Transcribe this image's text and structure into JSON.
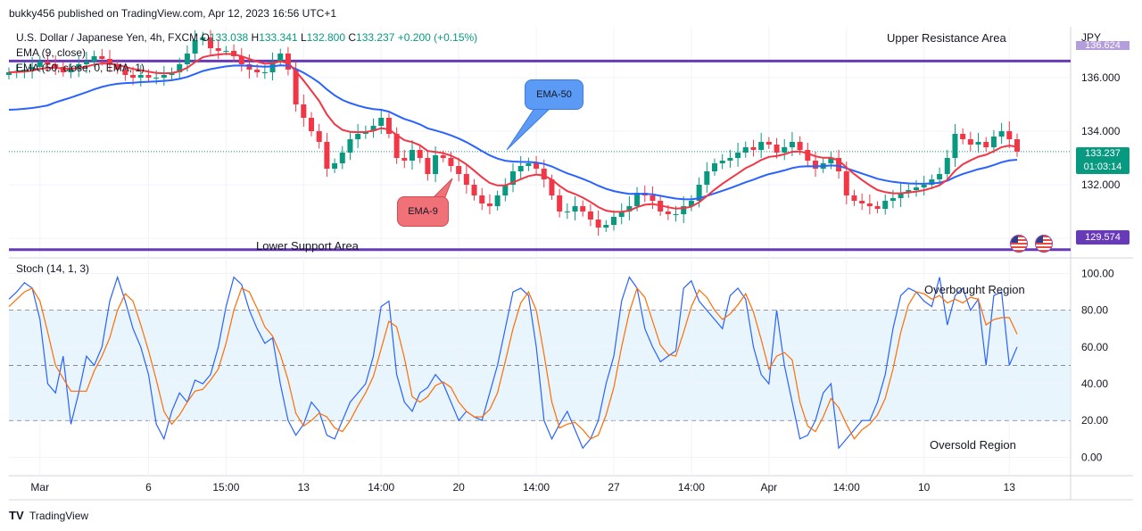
{
  "header": {
    "publisher": "bukky456 published on TradingView.com, Apr 12, 2023 16:56 UTC+1"
  },
  "legend": {
    "symbol": "U.S. Dollar / Japanese Yen, 4h, FXCM",
    "o_label": "O",
    "o": "133.038",
    "h_label": "H",
    "h": "133.341",
    "l_label": "L",
    "l": "132.800",
    "c_label": "C",
    "c": "133.237",
    "change": "+0.200 (+0.15%)",
    "ema9": "EMA (9, close)",
    "ema50": "EMA (50, close, 0, EMA, 1)",
    "stoch": "Stoch (14, 1, 3)"
  },
  "annotations": {
    "upper": "Upper Resistance Area",
    "lower": "Lower Support Area",
    "ema50_callout": "EMA-50",
    "ema9_callout": "EMA-9",
    "overbought": "Overbought Region",
    "oversold": "Oversold Region"
  },
  "price_axis": {
    "currency": "JPY",
    "hidden_top": "136.624",
    "last_price": "133.237",
    "countdown": "01:03:14",
    "support_price": "129.574"
  },
  "footer": {
    "brand": "TradingView"
  },
  "colors": {
    "up": "#089981",
    "down": "#f23645",
    "ema9": "#f23645",
    "ema50": "#2962ff",
    "level": "#673ab7",
    "stoch_k": "#2962ff",
    "stoch_d": "#ff6d00",
    "callout_blue": "#5b9bf5",
    "callout_red": "#f07178"
  },
  "chart_data": [
    {
      "type": "candlestick",
      "title": "U.S. Dollar / Japanese Yen, 4h, FXCM",
      "y_range": [
        129.3,
        137.9
      ],
      "y_ticks": [
        136.0,
        134.0,
        132.0,
        130.0
      ],
      "y_tick_labels": [
        "136.000",
        "134.000",
        "132.000",
        "130.000"
      ],
      "x_ticks": [
        "Mar",
        "6",
        "15:00",
        "13",
        "14:00",
        "20",
        "14:00",
        "27",
        "14:00",
        "Apr",
        "14:00",
        "10",
        "13"
      ],
      "x_tick_index": [
        4,
        18,
        28,
        38,
        48,
        58,
        68,
        78,
        88,
        98,
        108,
        118,
        129
      ],
      "resistance_level": 136.62,
      "support_level": 129.574,
      "last_price": 133.237,
      "closes": [
        136.2,
        136.25,
        136.3,
        136.4,
        136.6,
        136.5,
        136.4,
        136.2,
        136.3,
        136.5,
        136.6,
        136.8,
        136.7,
        136.5,
        136.3,
        136.1,
        136.0,
        136.1,
        136.0,
        136.0,
        136.1,
        136.2,
        136.5,
        136.9,
        137.4,
        137.5,
        137.1,
        137.0,
        137.0,
        136.8,
        136.5,
        136.3,
        136.2,
        136.2,
        136.6,
        136.9,
        136.3,
        135.0,
        134.5,
        134.0,
        133.6,
        132.6,
        132.8,
        133.2,
        133.7,
        133.9,
        134.0,
        134.2,
        134.5,
        133.9,
        133.0,
        132.9,
        133.3,
        133.0,
        132.4,
        133.1,
        133.0,
        132.7,
        132.4,
        132.0,
        131.6,
        131.3,
        131.2,
        131.6,
        132.0,
        132.5,
        132.7,
        132.8,
        132.6,
        132.2,
        131.6,
        131.0,
        131.0,
        131.2,
        131.0,
        130.7,
        130.4,
        130.5,
        130.8,
        131.0,
        131.2,
        131.7,
        131.6,
        131.4,
        131.0,
        130.9,
        130.9,
        131.2,
        131.4,
        132.0,
        132.5,
        132.8,
        132.9,
        133.0,
        133.2,
        133.4,
        133.3,
        133.6,
        133.5,
        133.2,
        133.4,
        133.6,
        133.3,
        132.9,
        132.6,
        132.8,
        133.0,
        132.5,
        131.6,
        131.4,
        131.3,
        131.2,
        131.1,
        131.4,
        131.5,
        131.7,
        131.8,
        131.9,
        132.0,
        132.2,
        132.4,
        133.0,
        133.9,
        133.7,
        133.5,
        133.6,
        133.4,
        133.8,
        134.0,
        133.7,
        133.237
      ],
      "ema9_label": "EMA-9",
      "ema50_label": "EMA-50"
    },
    {
      "type": "line",
      "title": "Stoch (14, 1, 3)",
      "y_range": [
        -10,
        108
      ],
      "y_ticks": [
        100,
        80,
        60,
        40,
        20,
        0
      ],
      "y_tick_labels": [
        "100.00",
        "80.00",
        "60.00",
        "40.00",
        "20.00",
        "0.00"
      ],
      "overbought": 80,
      "middle": 50,
      "oversold": 20,
      "series": [
        {
          "name": "%K",
          "values": [
            86,
            90,
            95,
            92,
            75,
            40,
            35,
            55,
            18,
            35,
            55,
            50,
            60,
            85,
            98,
            85,
            70,
            60,
            45,
            18,
            10,
            25,
            35,
            30,
            42,
            40,
            45,
            60,
            82,
            98,
            94,
            80,
            70,
            62,
            65,
            40,
            20,
            12,
            18,
            30,
            25,
            12,
            10,
            20,
            30,
            35,
            40,
            55,
            82,
            85,
            45,
            30,
            25,
            35,
            38,
            45,
            40,
            30,
            20,
            25,
            22,
            20,
            35,
            50,
            70,
            90,
            92,
            88,
            60,
            20,
            10,
            18,
            25,
            15,
            5,
            10,
            20,
            40,
            55,
            85,
            98,
            92,
            70,
            60,
            52,
            55,
            58,
            92,
            96,
            85,
            80,
            75,
            70,
            88,
            92,
            86,
            60,
            45,
            40,
            80,
            50,
            30,
            10,
            12,
            20,
            35,
            40,
            5,
            10,
            15,
            20,
            20,
            30,
            45,
            70,
            88,
            92,
            90,
            85,
            82,
            98,
            72,
            88,
            92,
            80,
            86,
            50,
            88,
            90,
            50,
            60
          ]
        },
        {
          "name": "%D",
          "values": [
            82,
            86,
            90,
            92,
            85,
            68,
            50,
            43,
            36,
            36,
            36,
            47,
            55,
            65,
            80,
            89,
            85,
            72,
            58,
            42,
            25,
            18,
            23,
            30,
            36,
            37,
            42,
            48,
            62,
            80,
            92,
            90,
            81,
            71,
            66,
            56,
            42,
            24,
            17,
            20,
            24,
            22,
            16,
            14,
            20,
            28,
            35,
            44,
            59,
            74,
            71,
            54,
            33,
            30,
            33,
            39,
            41,
            38,
            30,
            25,
            22,
            22,
            26,
            35,
            52,
            70,
            84,
            90,
            80,
            56,
            30,
            16,
            18,
            19,
            15,
            10,
            12,
            23,
            38,
            60,
            79,
            92,
            87,
            74,
            61,
            56,
            55,
            68,
            82,
            91,
            87,
            80,
            75,
            78,
            83,
            89,
            79,
            64,
            48,
            55,
            57,
            53,
            30,
            17,
            14,
            22,
            32,
            27,
            18,
            10,
            15,
            18,
            23,
            32,
            48,
            68,
            83,
            90,
            89,
            86,
            88,
            84,
            86,
            84,
            87,
            86,
            72,
            75,
            76,
            76,
            67
          ]
        }
      ]
    }
  ]
}
